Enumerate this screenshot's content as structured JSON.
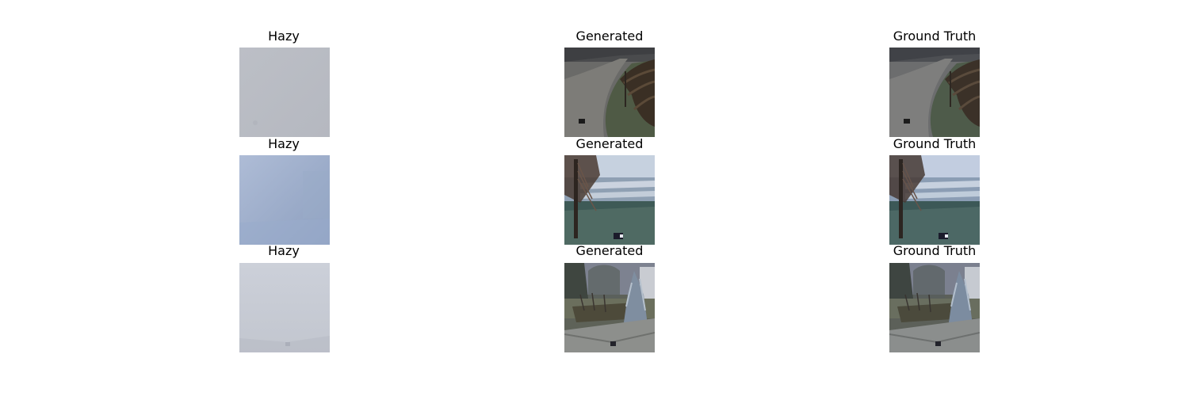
{
  "grid": {
    "rows": [
      {
        "hazy": {
          "title": "Hazy"
        },
        "generated": {
          "title": "Generated"
        },
        "ground_truth": {
          "title": "Ground Truth"
        }
      },
      {
        "hazy": {
          "title": "Hazy"
        },
        "generated": {
          "title": "Generated"
        },
        "ground_truth": {
          "title": "Ground Truth"
        }
      },
      {
        "hazy": {
          "title": "Hazy"
        },
        "generated": {
          "title": "Generated"
        },
        "ground_truth": {
          "title": "Ground Truth"
        }
      }
    ]
  },
  "colors": {
    "background": "#ffffff",
    "title_text": "#000000",
    "haze_row1": "#b9bcc3",
    "haze_row2": "#a9b8d2",
    "haze_row3": "#c9ccd6"
  }
}
